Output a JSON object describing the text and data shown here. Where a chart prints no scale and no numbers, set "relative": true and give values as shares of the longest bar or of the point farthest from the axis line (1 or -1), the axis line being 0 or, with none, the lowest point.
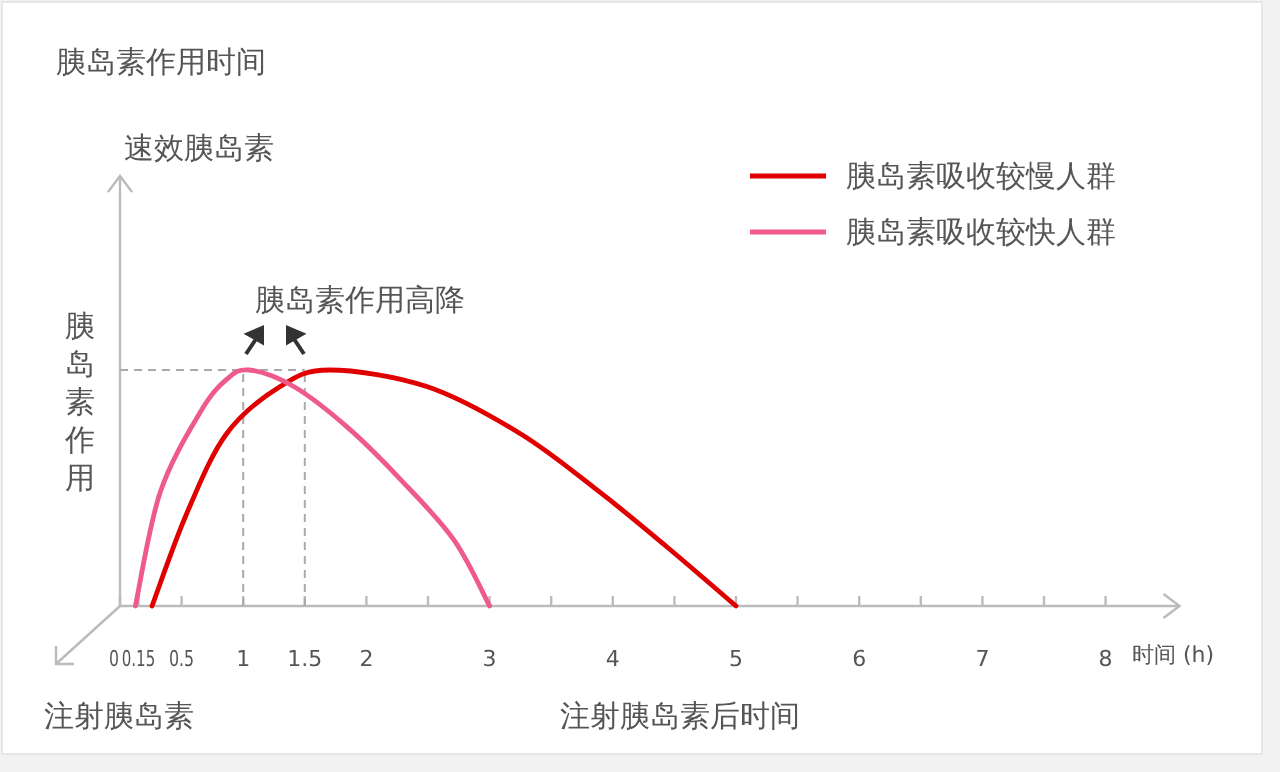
{
  "chart_data": {
    "type": "line",
    "relative": true,
    "title": "胰岛素作用时间",
    "subtitle": "速效胰岛素",
    "ylabel": "胰岛素作用",
    "xlabel": "注射胰岛素后时间",
    "annotations": [
      "胰岛素作用高降",
      "时间 (h)",
      "注射胰岛素"
    ],
    "xlim": [
      0,
      8.6
    ],
    "xticks": [
      0,
      0.15,
      0.5,
      1,
      1.5,
      2,
      {
        "value": 2.5,
        "label": null
      },
      3,
      {
        "value": 3.5,
        "label": null
      },
      4,
      {
        "value": 4.5,
        "label": null
      },
      5,
      {
        "value": 5.5,
        "label": null
      },
      6,
      {
        "value": 6.5,
        "label": null
      },
      7,
      {
        "value": 7.5,
        "label": null
      },
      8
    ],
    "ref_lines": [
      {
        "axis": "y",
        "value": 1,
        "color": "#aaaaaa",
        "line_style": "dashed"
      },
      {
        "axis": "x",
        "value": 1,
        "color": "#aaaaaa",
        "line_style": "dashed"
      },
      {
        "axis": "x",
        "value": 1.5,
        "color": "#aaaaaa",
        "line_style": "dashed"
      }
    ],
    "legend": "top right",
    "grid": false,
    "marker": "none",
    "line_style": "solid",
    "series": [
      {
        "name": "胰岛素吸收较慢人群",
        "color": "#e00000",
        "x": [
          0.26,
          0.54,
          0.865,
          1.3,
          1.7,
          2.49,
          3.25,
          3.9,
          4.44,
          5
        ],
        "values": [
          0,
          0.39,
          0.73,
          0.93,
          1,
          0.93,
          0.73,
          0.48,
          0.25,
          0
        ]
      },
      {
        "name": "胰岛素吸收较快人群",
        "color": "#ee5a8a",
        "x": [
          0.125,
          0.325,
          0.65,
          0.865,
          1.05,
          1.41,
          1.84,
          2.27,
          2.71,
          3
        ],
        "values": [
          0,
          0.48,
          0.82,
          0.96,
          1,
          0.93,
          0.76,
          0.54,
          0.28,
          0
        ]
      }
    ]
  }
}
